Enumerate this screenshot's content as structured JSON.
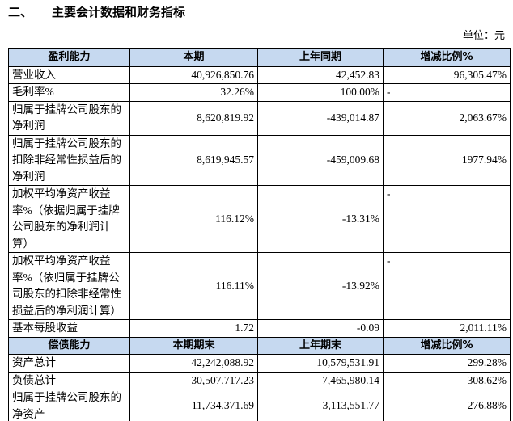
{
  "header": {
    "section": "二、",
    "title": "主要会计数据和财务指标",
    "unit": "单位：元"
  },
  "table": {
    "sections": [
      {
        "headers": [
          "盈利能力",
          "本期",
          "上年同期",
          "增减比例%"
        ],
        "rows": [
          [
            "营业收入",
            "40,926,850.76",
            "42,452.83",
            "96,305.47%"
          ],
          [
            "毛利率%",
            "32.26%",
            "100.00%",
            "-"
          ],
          [
            "归属于挂牌公司股东的净利润",
            "8,620,819.92",
            "-439,014.87",
            "2,063.67%"
          ],
          [
            "归属于挂牌公司股东的扣除非经常性损益后的净利润",
            "8,619,945.57",
            "-459,009.68",
            "1977.94%"
          ],
          [
            "加权平均净资产收益率%（依据归属于挂牌公司股东的净利润计算）",
            "116.12%",
            "-13.31%",
            "-"
          ],
          [
            "加权平均净资产收益率%（依归属于挂牌公司股东的扣除非经常性损益后的净利润计算）",
            "116.11%",
            "-13.92%",
            "-"
          ],
          [
            "基本每股收益",
            "1.72",
            "-0.09",
            "2,011.11%"
          ]
        ]
      },
      {
        "headers": [
          "偿债能力",
          "本期期末",
          "上年期末",
          "增减比例%"
        ],
        "rows": [
          [
            "资产总计",
            "42,242,088.92",
            "10,579,531.91",
            "299.28%"
          ],
          [
            "负债总计",
            "30,507,717.23",
            "7,465,980.14",
            "308.62%"
          ],
          [
            "归属于挂牌公司股东的净资产",
            "11,734,371.69",
            "3,113,551.77",
            "276.88%"
          ]
        ]
      }
    ]
  }
}
